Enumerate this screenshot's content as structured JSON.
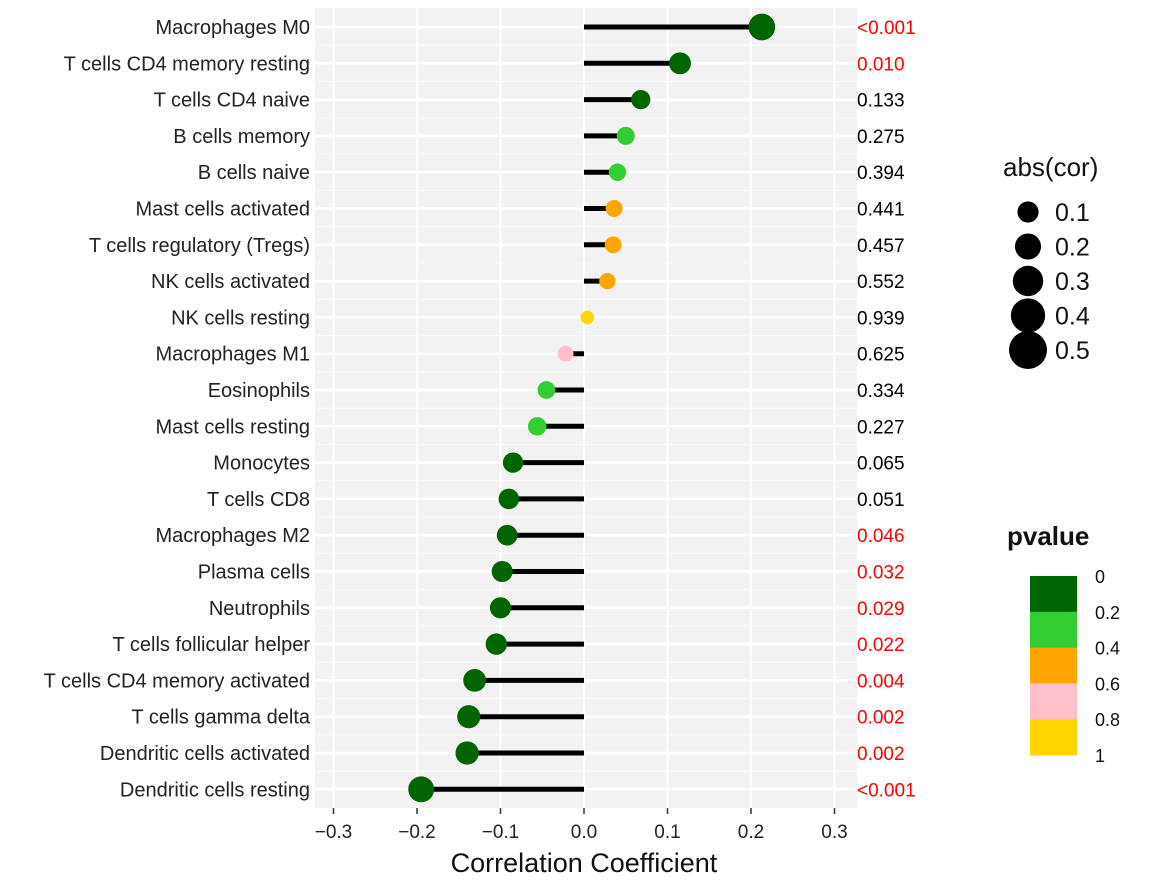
{
  "chart_data": {
    "type": "lollipop",
    "xlabel": "Correlation Coefficient",
    "xlim": [
      -0.33,
      0.33
    ],
    "x_ticks": [
      -0.3,
      -0.2,
      -0.1,
      0.0,
      0.1,
      0.2,
      0.3
    ],
    "x_tick_labels": [
      "−0.3",
      "−0.2",
      "−0.1",
      "0.0",
      "0.1",
      "0.2",
      "0.3"
    ],
    "rows": [
      {
        "label": "Macrophages M0",
        "cor": 0.213,
        "pvalue": 0.0005,
        "pvalue_text": "<0.001"
      },
      {
        "label": "T cells CD4 memory resting",
        "cor": 0.115,
        "pvalue": 0.01,
        "pvalue_text": "0.010"
      },
      {
        "label": "T cells CD4 naive",
        "cor": 0.068,
        "pvalue": 0.133,
        "pvalue_text": "0.133"
      },
      {
        "label": "B cells memory",
        "cor": 0.05,
        "pvalue": 0.275,
        "pvalue_text": "0.275"
      },
      {
        "label": "B cells naive",
        "cor": 0.04,
        "pvalue": 0.394,
        "pvalue_text": "0.394"
      },
      {
        "label": "Mast cells activated",
        "cor": 0.036,
        "pvalue": 0.441,
        "pvalue_text": "0.441"
      },
      {
        "label": "T cells regulatory (Tregs)",
        "cor": 0.035,
        "pvalue": 0.457,
        "pvalue_text": "0.457"
      },
      {
        "label": "NK cells activated",
        "cor": 0.028,
        "pvalue": 0.552,
        "pvalue_text": "0.552"
      },
      {
        "label": "NK cells resting",
        "cor": 0.004,
        "pvalue": 0.939,
        "pvalue_text": "0.939"
      },
      {
        "label": "Macrophages M1",
        "cor": -0.022,
        "pvalue": 0.625,
        "pvalue_text": "0.625"
      },
      {
        "label": "Eosinophils",
        "cor": -0.045,
        "pvalue": 0.334,
        "pvalue_text": "0.334"
      },
      {
        "label": "Mast cells resting",
        "cor": -0.056,
        "pvalue": 0.227,
        "pvalue_text": "0.227"
      },
      {
        "label": "Monocytes",
        "cor": -0.085,
        "pvalue": 0.065,
        "pvalue_text": "0.065"
      },
      {
        "label": "T cells CD8",
        "cor": -0.09,
        "pvalue": 0.051,
        "pvalue_text": "0.051"
      },
      {
        "label": "Macrophages M2",
        "cor": -0.092,
        "pvalue": 0.046,
        "pvalue_text": "0.046"
      },
      {
        "label": "Plasma cells",
        "cor": -0.098,
        "pvalue": 0.032,
        "pvalue_text": "0.032"
      },
      {
        "label": "Neutrophils",
        "cor": -0.1,
        "pvalue": 0.029,
        "pvalue_text": "0.029"
      },
      {
        "label": "T cells follicular helper",
        "cor": -0.105,
        "pvalue": 0.022,
        "pvalue_text": "0.022"
      },
      {
        "label": "T cells CD4 memory activated",
        "cor": -0.131,
        "pvalue": 0.004,
        "pvalue_text": "0.004"
      },
      {
        "label": "T cells gamma delta",
        "cor": -0.138,
        "pvalue": 0.002,
        "pvalue_text": "0.002"
      },
      {
        "label": "Dendritic cells activated",
        "cor": -0.14,
        "pvalue": 0.002,
        "pvalue_text": "0.002"
      },
      {
        "label": "Dendritic cells resting",
        "cor": -0.195,
        "pvalue": 0.0005,
        "pvalue_text": "<0.001"
      }
    ],
    "significant_color": "#ff0000",
    "nonsignificant_color": "#000000",
    "size_legend": {
      "title": "abs(cor)",
      "values": [
        0.1,
        0.2,
        0.3,
        0.4,
        0.5
      ],
      "labels": [
        "0.1",
        "0.2",
        "0.3",
        "0.4",
        "0.5"
      ]
    },
    "color_legend": {
      "title": "pvalue",
      "breaks": [
        "0",
        "0.2",
        "0.4",
        "0.6",
        "0.8",
        "1"
      ],
      "colors": [
        "#006400",
        "#32cd32",
        "#ffa500",
        "#ffc0cb",
        "#ffd700"
      ]
    },
    "panel_background": "#f2f2f2",
    "grid": true
  }
}
